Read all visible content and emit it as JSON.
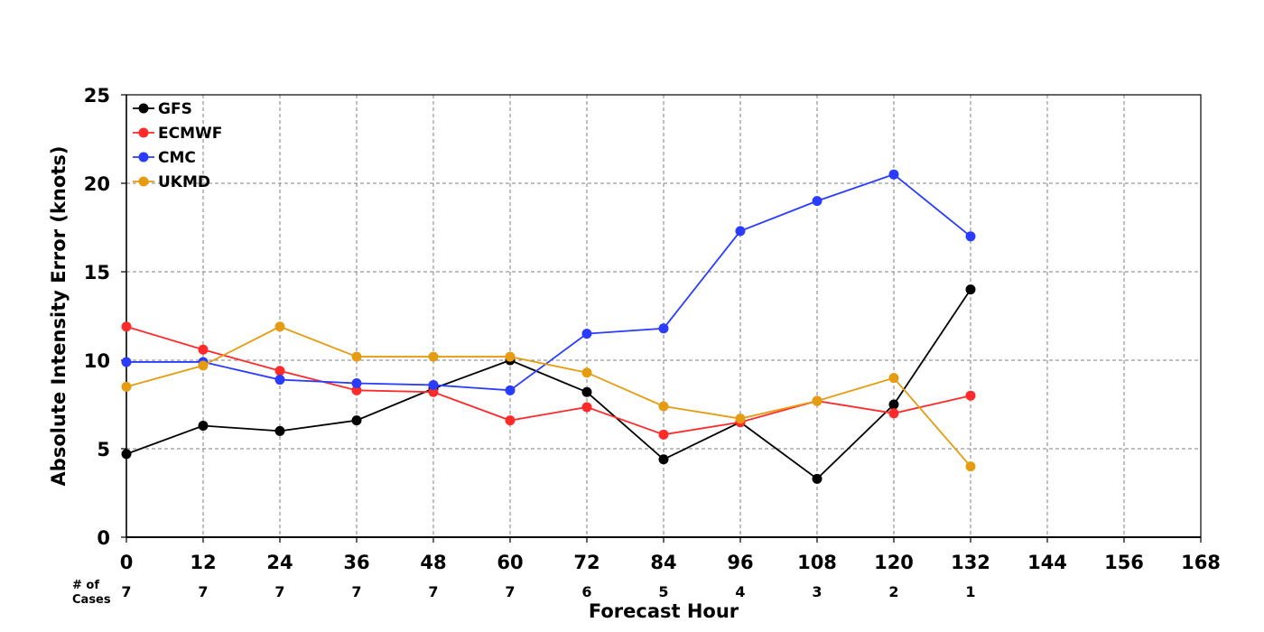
{
  "chart_data": {
    "type": "line",
    "xlabel": "Forecast Hour",
    "ylabel": "Absolute Intensity Error (knots)",
    "xlim": [
      0,
      168
    ],
    "ylim": [
      0,
      25
    ],
    "x_ticks": [
      0,
      12,
      24,
      36,
      48,
      60,
      72,
      84,
      96,
      108,
      120,
      132,
      144,
      156,
      168
    ],
    "y_ticks": [
      0,
      5,
      10,
      15,
      20,
      25
    ],
    "grid": true,
    "legend_position": "top-left",
    "cases_label": "# of Cases",
    "cases_label_lines": [
      "# of",
      "Cases"
    ],
    "cases": [
      {
        "x": 0,
        "n": "7"
      },
      {
        "x": 12,
        "n": "7"
      },
      {
        "x": 24,
        "n": "7"
      },
      {
        "x": 36,
        "n": "7"
      },
      {
        "x": 48,
        "n": "7"
      },
      {
        "x": 60,
        "n": "7"
      },
      {
        "x": 72,
        "n": "6"
      },
      {
        "x": 84,
        "n": "5"
      },
      {
        "x": 96,
        "n": "4"
      },
      {
        "x": 108,
        "n": "3"
      },
      {
        "x": 120,
        "n": "2"
      },
      {
        "x": 132,
        "n": "1"
      }
    ],
    "x": [
      0,
      12,
      24,
      36,
      48,
      60,
      72,
      84,
      96,
      108,
      120,
      132
    ],
    "series": [
      {
        "name": "GFS",
        "color": "#000000",
        "values": [
          4.7,
          6.3,
          6.0,
          6.6,
          8.4,
          10.0,
          8.2,
          4.4,
          6.5,
          3.3,
          7.5,
          14.0
        ]
      },
      {
        "name": "ECMWF",
        "color": "#ff2a2a",
        "values": [
          11.9,
          10.6,
          9.4,
          8.3,
          8.2,
          6.6,
          7.35,
          5.8,
          6.5,
          7.7,
          7.0,
          8.0
        ]
      },
      {
        "name": "CMC",
        "color": "#2a3cff",
        "values": [
          9.9,
          9.9,
          8.9,
          8.7,
          8.6,
          8.3,
          11.5,
          11.8,
          17.3,
          19.0,
          20.5,
          17.0
        ]
      },
      {
        "name": "UKMD",
        "color": "#e59c12",
        "values": [
          8.5,
          9.7,
          11.9,
          10.2,
          10.2,
          10.2,
          9.3,
          7.4,
          6.7,
          7.7,
          9.0,
          4.0
        ]
      }
    ]
  }
}
